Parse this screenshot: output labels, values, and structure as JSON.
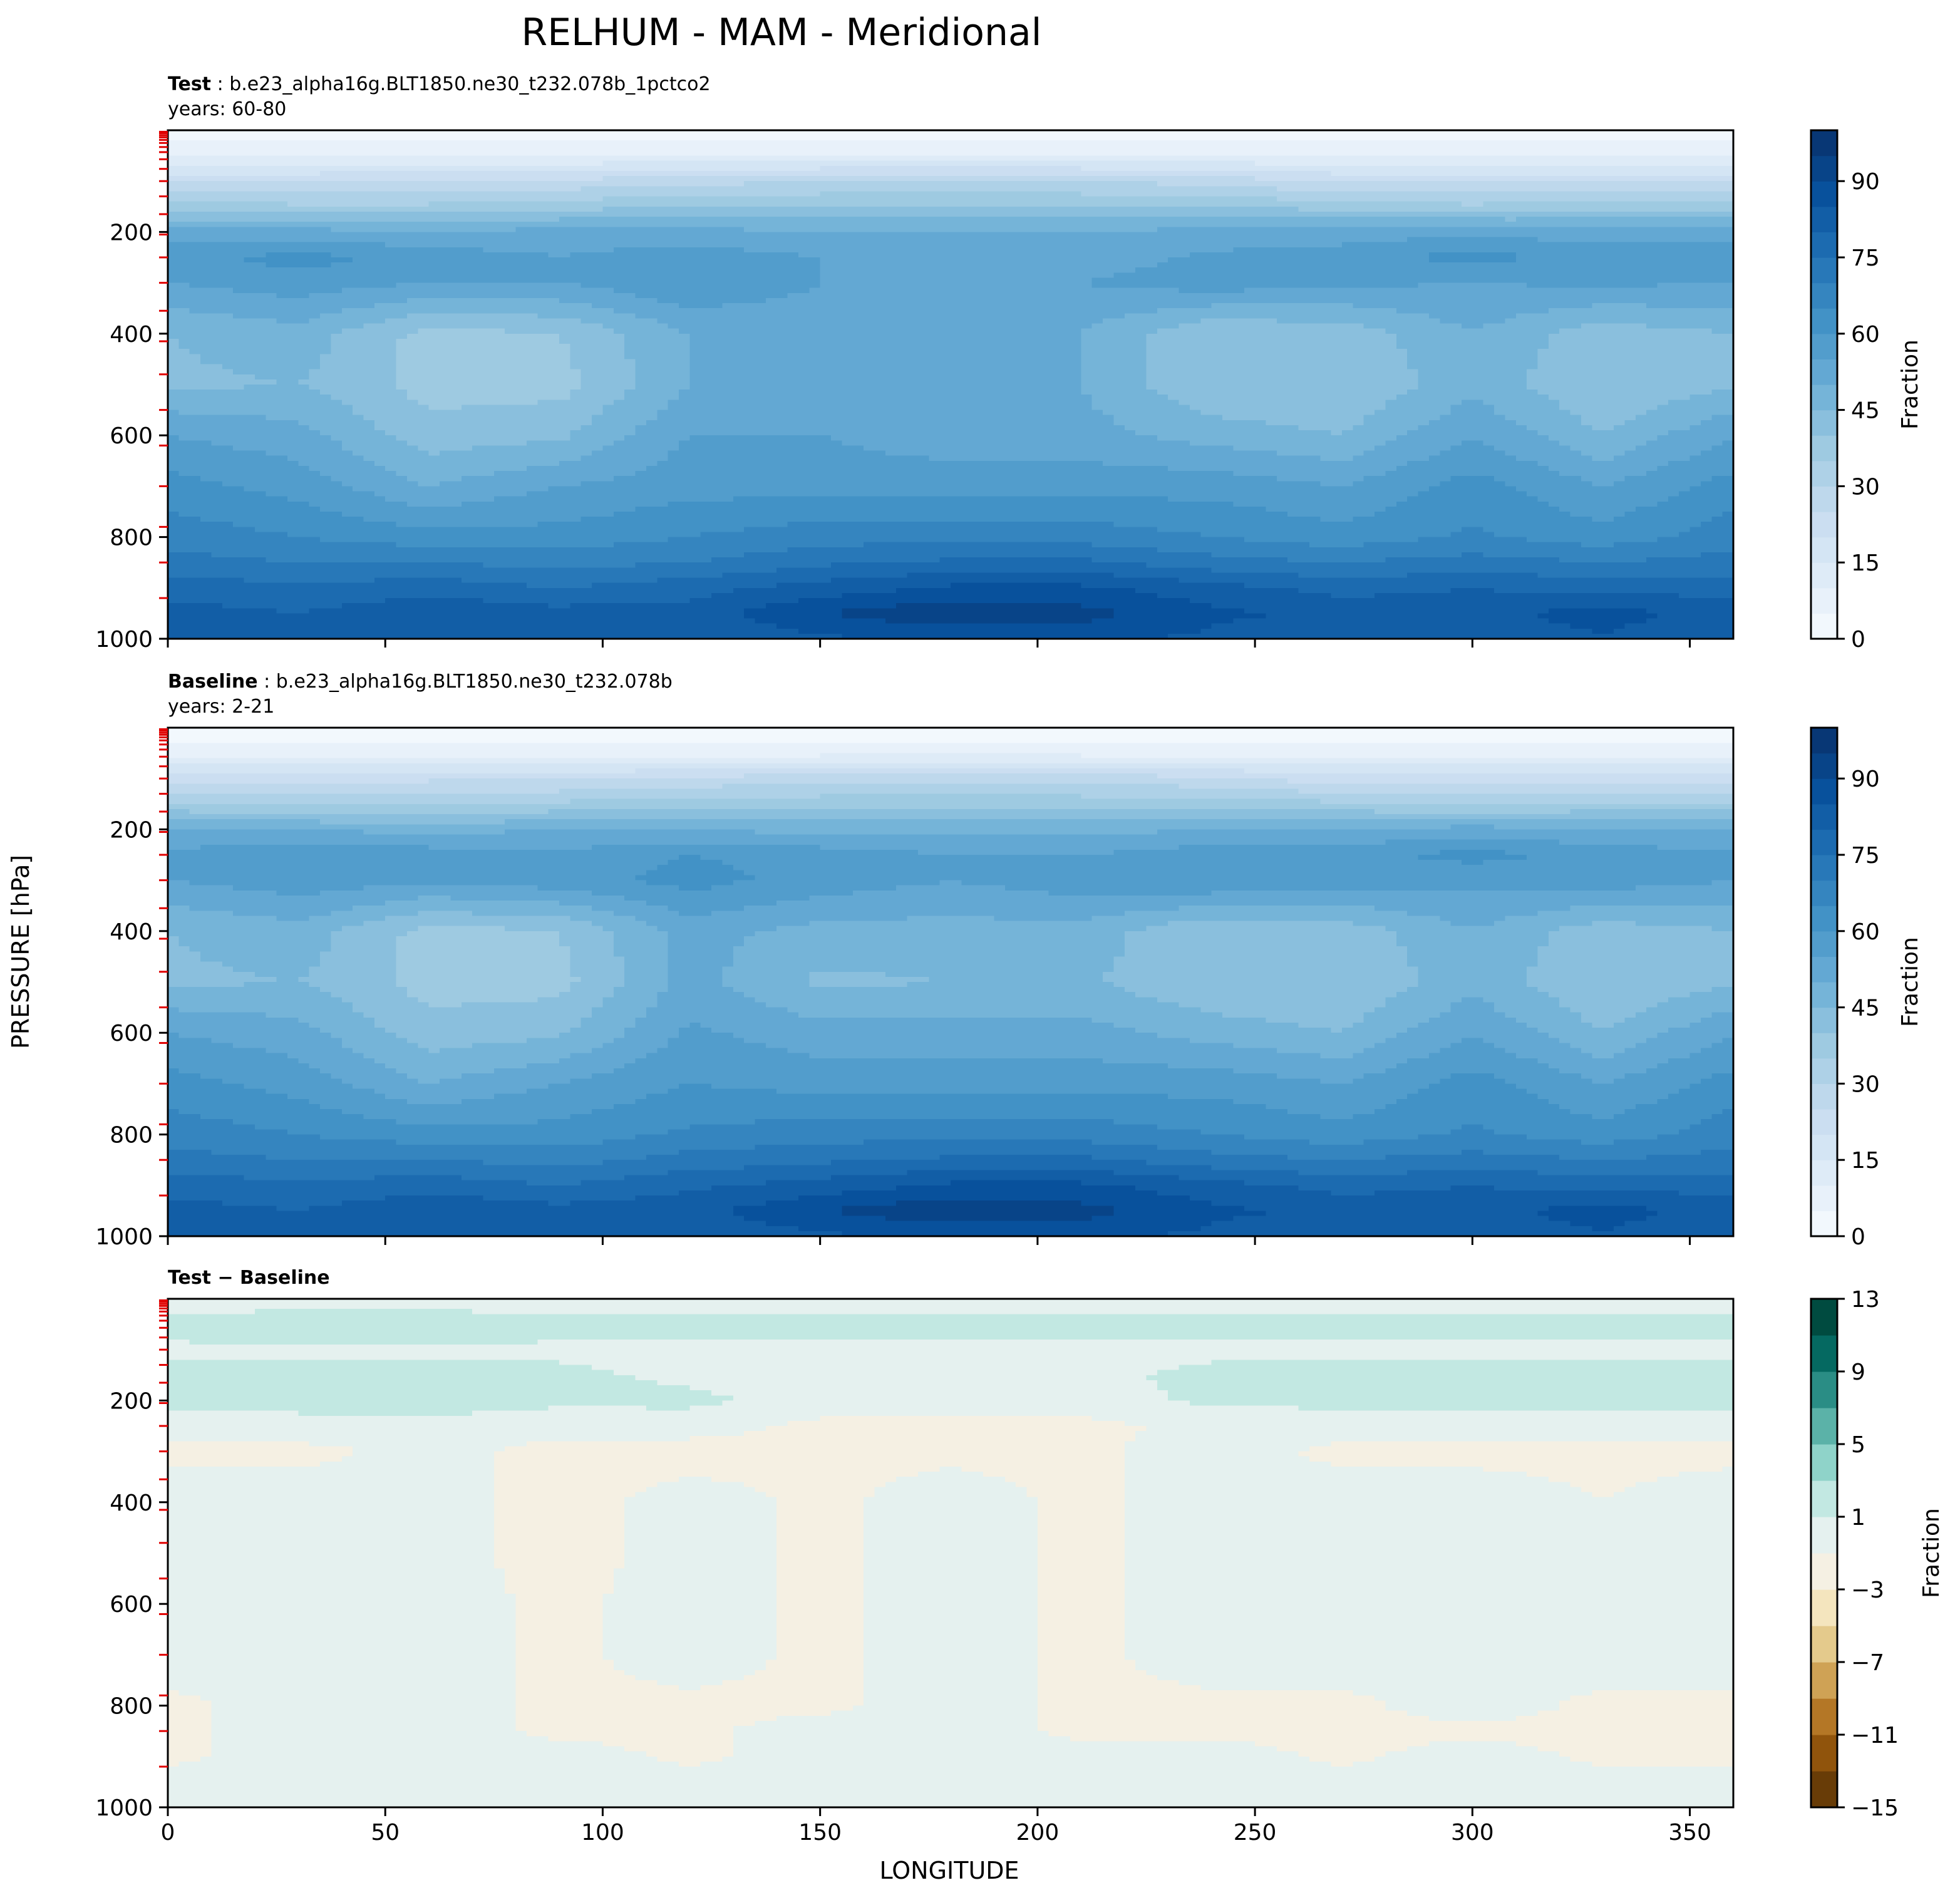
{
  "figure": {
    "title": "RELHUM - MAM - Meridional",
    "ylabel": "PRESSURE [hPa]",
    "xlabel": "LONGITUDE"
  },
  "chart_data": [
    {
      "type": "heatmap",
      "panel": "test",
      "label_bold": "Test",
      "label_rest": ": b.e23_alpha16g.BLT1850.ne30_t232.078b_1pctco2",
      "years": "years: 60-80",
      "xlim": [
        0,
        360
      ],
      "ylim": [
        1000,
        0
      ],
      "x_ticks": [
        0,
        50,
        100,
        150,
        200,
        250,
        300,
        350
      ],
      "x_tick_labels_visible": false,
      "y_ticks": [
        200,
        400,
        600,
        800,
        1000
      ],
      "y_tick_labels": [
        "200",
        "400",
        "600",
        "800",
        "1000"
      ],
      "colormap": "Blues",
      "colorbar": {
        "label": "Fraction",
        "vmin": 0,
        "vmax": 100,
        "step": 5,
        "ticks": [
          0,
          15,
          30,
          45,
          60,
          75,
          90
        ],
        "tick_labels": [
          "0",
          "15",
          "30",
          "45",
          "60",
          "75",
          "90"
        ]
      },
      "field": {
        "longitudes": [
          0,
          30,
          60,
          90,
          120,
          150,
          180,
          210,
          240,
          270,
          300,
          330,
          360
        ],
        "pressures": [
          10,
          50,
          100,
          150,
          200,
          250,
          300,
          400,
          500,
          600,
          700,
          800,
          850,
          900,
          950,
          1000
        ],
        "values": [
          [
            2,
            2,
            2,
            2,
            2,
            2,
            2,
            2,
            2,
            2,
            2,
            2,
            2
          ],
          [
            10,
            10,
            10,
            10,
            10,
            10,
            10,
            10,
            10,
            10,
            10,
            10,
            10
          ],
          [
            24,
            24,
            26,
            26,
            28,
            30,
            30,
            30,
            28,
            24,
            24,
            24,
            24
          ],
          [
            38,
            36,
            36,
            38,
            40,
            40,
            40,
            40,
            40,
            38,
            36,
            38,
            38
          ],
          [
            52,
            52,
            50,
            52,
            52,
            50,
            50,
            50,
            52,
            52,
            54,
            52,
            52
          ],
          [
            58,
            62,
            58,
            55,
            58,
            55,
            52,
            52,
            56,
            58,
            62,
            58,
            58
          ],
          [
            55,
            58,
            55,
            55,
            60,
            55,
            50,
            55,
            58,
            56,
            55,
            56,
            55
          ],
          [
            45,
            48,
            38,
            40,
            50,
            52,
            50,
            50,
            40,
            42,
            50,
            42,
            45
          ],
          [
            44,
            45,
            38,
            38,
            50,
            52,
            50,
            50,
            40,
            40,
            48,
            40,
            44
          ],
          [
            55,
            52,
            42,
            44,
            55,
            55,
            52,
            52,
            48,
            45,
            55,
            45,
            55
          ],
          [
            62,
            58,
            50,
            55,
            58,
            58,
            58,
            58,
            58,
            55,
            62,
            55,
            62
          ],
          [
            68,
            65,
            62,
            62,
            65,
            68,
            68,
            68,
            65,
            62,
            66,
            62,
            68
          ],
          [
            72,
            70,
            70,
            68,
            70,
            74,
            76,
            76,
            72,
            70,
            72,
            70,
            72
          ],
          [
            78,
            76,
            78,
            75,
            78,
            82,
            86,
            86,
            82,
            78,
            80,
            78,
            78
          ],
          [
            82,
            80,
            84,
            82,
            82,
            90,
            94,
            92,
            86,
            84,
            82,
            88,
            82
          ],
          [
            80,
            80,
            82,
            80,
            80,
            84,
            86,
            86,
            84,
            82,
            82,
            84,
            80
          ]
        ]
      }
    },
    {
      "type": "heatmap",
      "panel": "baseline",
      "label_bold": "Baseline",
      "label_rest": ": b.e23_alpha16g.BLT1850.ne30_t232.078b",
      "years": "years: 2-21",
      "xlim": [
        0,
        360
      ],
      "ylim": [
        1000,
        0
      ],
      "x_ticks": [
        0,
        50,
        100,
        150,
        200,
        250,
        300,
        350
      ],
      "x_tick_labels_visible": false,
      "y_ticks": [
        200,
        400,
        600,
        800,
        1000
      ],
      "y_tick_labels": [
        "200",
        "400",
        "600",
        "800",
        "1000"
      ],
      "colormap": "Blues",
      "colorbar": {
        "label": "Fraction",
        "vmin": 0,
        "vmax": 100,
        "step": 5,
        "ticks": [
          0,
          15,
          30,
          45,
          60,
          75,
          90
        ],
        "tick_labels": [
          "0",
          "15",
          "30",
          "45",
          "60",
          "75",
          "90"
        ]
      },
      "field": {
        "longitudes": [
          0,
          30,
          60,
          90,
          120,
          150,
          180,
          210,
          240,
          270,
          300,
          330,
          360
        ],
        "pressures": [
          10,
          50,
          100,
          150,
          200,
          250,
          300,
          400,
          500,
          600,
          700,
          800,
          850,
          900,
          950,
          1000
        ],
        "values": [
          [
            2,
            2,
            2,
            2,
            2,
            2,
            2,
            2,
            2,
            2,
            2,
            2,
            2
          ],
          [
            8,
            8,
            8,
            8,
            8,
            8,
            8,
            8,
            8,
            8,
            8,
            8,
            8
          ],
          [
            22,
            22,
            24,
            24,
            26,
            28,
            28,
            28,
            26,
            22,
            22,
            22,
            22
          ],
          [
            36,
            34,
            34,
            36,
            38,
            38,
            38,
            38,
            38,
            36,
            34,
            36,
            36
          ],
          [
            50,
            50,
            48,
            50,
            50,
            48,
            48,
            48,
            50,
            50,
            52,
            50,
            50
          ],
          [
            56,
            60,
            58,
            56,
            60,
            58,
            55,
            55,
            58,
            58,
            62,
            58,
            56
          ],
          [
            55,
            58,
            56,
            58,
            62,
            58,
            55,
            58,
            60,
            58,
            56,
            58,
            55
          ],
          [
            45,
            48,
            38,
            40,
            52,
            48,
            48,
            48,
            40,
            42,
            50,
            42,
            45
          ],
          [
            44,
            45,
            38,
            38,
            52,
            44,
            45,
            46,
            40,
            40,
            48,
            40,
            44
          ],
          [
            55,
            52,
            42,
            44,
            56,
            52,
            52,
            52,
            48,
            45,
            55,
            45,
            55
          ],
          [
            62,
            58,
            50,
            55,
            60,
            58,
            58,
            58,
            58,
            55,
            62,
            55,
            62
          ],
          [
            68,
            65,
            62,
            62,
            66,
            68,
            68,
            68,
            65,
            62,
            66,
            62,
            68
          ],
          [
            72,
            70,
            70,
            68,
            72,
            74,
            76,
            76,
            72,
            70,
            72,
            70,
            72
          ],
          [
            78,
            76,
            78,
            75,
            79,
            82,
            86,
            86,
            82,
            78,
            80,
            78,
            78
          ],
          [
            82,
            80,
            84,
            82,
            83,
            90,
            94,
            92,
            86,
            84,
            82,
            88,
            82
          ],
          [
            80,
            80,
            82,
            80,
            81,
            84,
            86,
            86,
            84,
            82,
            82,
            84,
            80
          ]
        ]
      }
    },
    {
      "type": "heatmap",
      "panel": "difference",
      "label_bold": "Test − Baseline",
      "xlim": [
        0,
        360
      ],
      "ylim": [
        1000,
        0
      ],
      "x_ticks": [
        0,
        50,
        100,
        150,
        200,
        250,
        300,
        350
      ],
      "x_tick_labels": [
        "0",
        "50",
        "100",
        "150",
        "200",
        "250",
        "300",
        "350"
      ],
      "y_ticks": [
        200,
        400,
        600,
        800,
        1000
      ],
      "y_tick_labels": [
        "200",
        "400",
        "600",
        "800",
        "1000"
      ],
      "colormap": "BrBG",
      "colorbar": {
        "label": "Fraction",
        "levels": [
          -15,
          -13,
          -11,
          -9,
          -7,
          -5,
          -3,
          -1,
          1,
          3,
          5,
          7,
          9,
          11,
          13
        ],
        "ticks": [
          -15,
          -11,
          -7,
          -3,
          1,
          5,
          9,
          13
        ],
        "tick_labels": [
          "−15",
          "−11",
          "−7",
          "−3",
          "1",
          "5",
          "9",
          "13"
        ]
      },
      "field": {
        "longitudes": [
          0,
          30,
          60,
          90,
          120,
          150,
          180,
          210,
          240,
          270,
          300,
          330,
          360
        ],
        "pressures": [
          10,
          50,
          100,
          150,
          200,
          250,
          300,
          400,
          500,
          600,
          700,
          800,
          850,
          900,
          950,
          1000
        ],
        "values": [
          [
            0,
            0,
            0,
            0,
            0,
            0,
            0,
            0,
            0,
            0,
            0,
            0,
            0
          ],
          [
            2,
            3,
            3,
            2,
            2,
            2,
            2,
            2,
            2,
            2,
            2,
            2,
            2
          ],
          [
            0.5,
            0.5,
            0.5,
            0.5,
            0.5,
            0.5,
            0.5,
            0.5,
            0.5,
            0.5,
            0.5,
            0.5,
            0.5
          ],
          [
            1.5,
            2,
            2,
            1.5,
            0.5,
            0.5,
            0.5,
            0.5,
            1.5,
            1.5,
            1.5,
            1.5,
            1.5
          ],
          [
            1.5,
            2,
            2.5,
            1.5,
            1.5,
            0,
            0,
            0,
            1.5,
            1.5,
            1.5,
            1.5,
            1.5
          ],
          [
            0,
            0,
            0,
            -0.5,
            0,
            -1.5,
            -1.5,
            -1.5,
            -0.5,
            0,
            0,
            0,
            0
          ],
          [
            -1.5,
            -1.5,
            -0.5,
            -1.5,
            -2,
            -1.5,
            -1.5,
            -1.5,
            0,
            -1.5,
            -1.5,
            -1.5,
            -1.5
          ],
          [
            0,
            0,
            0,
            -2,
            0,
            -1.5,
            0,
            -1.5,
            0,
            0,
            0,
            -1,
            0
          ],
          [
            0,
            0,
            0,
            -2,
            0,
            -1.5,
            0,
            -1.5,
            0,
            0,
            0,
            0,
            0
          ],
          [
            0,
            0,
            0,
            -1.5,
            0,
            -1.5,
            0,
            -1.5,
            0,
            0,
            0,
            0,
            0
          ],
          [
            0,
            0,
            0,
            -1.5,
            0,
            -1.5,
            0,
            -1.5,
            0,
            0,
            0,
            0,
            0
          ],
          [
            -1.5,
            0,
            0,
            -1.5,
            -1.5,
            -1.5,
            0,
            -1.5,
            -1.5,
            -1.5,
            0,
            -1.5,
            -1.5
          ],
          [
            -1.5,
            0,
            0,
            -1.5,
            -1.5,
            0,
            0,
            -1.5,
            -1.5,
            -1.5,
            -1.5,
            -1.5,
            -1.5
          ],
          [
            -1.5,
            0,
            0,
            0,
            -1.5,
            0,
            0,
            0,
            0,
            -1.5,
            0,
            -1.5,
            -1.5
          ],
          [
            0,
            0,
            0,
            0,
            0,
            0,
            0,
            0,
            0,
            0,
            0,
            0,
            0
          ],
          [
            0,
            0,
            0,
            0,
            0,
            0,
            0,
            0,
            0.5,
            0,
            0,
            0,
            0
          ]
        ]
      }
    }
  ]
}
